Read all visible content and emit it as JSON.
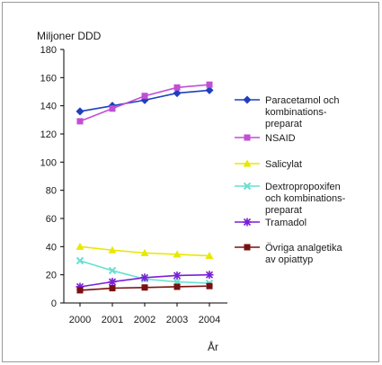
{
  "chart_data": {
    "type": "line",
    "ylabel": "Miljoner DDD",
    "xlabel": "År",
    "x": [
      "2000",
      "2001",
      "2002",
      "2003",
      "2004"
    ],
    "yticks": [
      0,
      20,
      40,
      60,
      80,
      100,
      120,
      140,
      160,
      180
    ],
    "ylim": [
      0,
      180
    ],
    "grid": false,
    "legend_position": "right",
    "series": [
      {
        "name": "Paracetamol och kombinations-preparat",
        "label_lines": [
          "Paracetamol och",
          "kombinations-",
          "preparat"
        ],
        "color": "#1f3fbf",
        "marker": "diamond",
        "values": [
          136,
          140,
          144,
          149,
          151
        ]
      },
      {
        "name": "NSAID",
        "label_lines": [
          "NSAID"
        ],
        "color": "#c04fd6",
        "marker": "square",
        "values": [
          129,
          138,
          147,
          153,
          155
        ]
      },
      {
        "name": "Salicylat",
        "label_lines": [
          "Salicylat"
        ],
        "color": "#e8e800",
        "marker": "triangle",
        "values": [
          40,
          37.5,
          35.5,
          34.5,
          33.5
        ]
      },
      {
        "name": "Dextropropoxifen och kombinations-preparat",
        "label_lines": [
          "Dextropropoxifen",
          "och kombinations-",
          "preparat"
        ],
        "color": "#66e0d0",
        "marker": "x",
        "values": [
          30,
          23,
          17,
          15,
          14
        ]
      },
      {
        "name": "Tramadol",
        "label_lines": [
          "Tramadol"
        ],
        "color": "#7a1fd6",
        "marker": "asterisk",
        "values": [
          11.5,
          15,
          18,
          19.5,
          20
        ]
      },
      {
        "name": "Övriga analgetika av opiattyp",
        "label_lines": [
          "Övriga analgetika",
          "av opiattyp"
        ],
        "color": "#7a1010",
        "marker": "square",
        "values": [
          9,
          10.5,
          11,
          11.5,
          12
        ]
      }
    ]
  }
}
